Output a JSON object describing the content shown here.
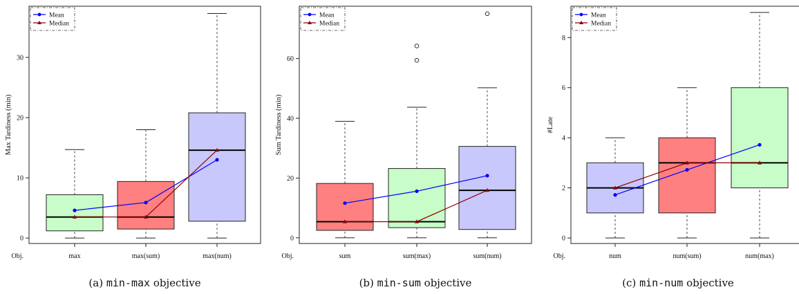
{
  "chart_data": [
    {
      "type": "box",
      "title": "",
      "xlabel": "Obj.",
      "ylabel": "Max Tardiness (min)",
      "ylim": [
        -0.9,
        38.5
      ],
      "yticks": [
        0,
        10,
        20,
        30
      ],
      "grid": false,
      "legend": {
        "position": "top-left",
        "entries": [
          "Mean",
          "Median"
        ]
      },
      "categories": [
        "max",
        "max(sum)",
        "max(num)"
      ],
      "box_colors": [
        "#c8fcc8",
        "#ff8080",
        "#c8c8fc"
      ],
      "boxes": [
        {
          "min": 0,
          "q1": 1.2,
          "median": 3.5,
          "q3": 7.2,
          "max": 14.7,
          "outliers": []
        },
        {
          "min": 0,
          "q1": 1.5,
          "median": 3.5,
          "q3": 9.4,
          "max": 18.0,
          "outliers": []
        },
        {
          "min": 0,
          "q1": 2.8,
          "median": 14.6,
          "q3": 20.8,
          "max": 37.3,
          "outliers": []
        }
      ],
      "series": [
        {
          "name": "Mean",
          "values": [
            4.6,
            5.9,
            13.0
          ]
        },
        {
          "name": "Median",
          "values": [
            3.5,
            3.5,
            14.6
          ]
        }
      ],
      "caption": {
        "label": "(a)",
        "code": "min-max",
        "text": "objective"
      }
    },
    {
      "type": "box",
      "title": "",
      "xlabel": "Obj.",
      "ylabel": "Sum Tardiness (min)",
      "ylim": [
        -1.9,
        77.5
      ],
      "yticks": [
        0,
        20,
        40,
        60
      ],
      "grid": false,
      "legend": {
        "position": "top-left",
        "entries": [
          "Mean",
          "Median"
        ]
      },
      "categories": [
        "sum",
        "sum(max)",
        "sum(num)"
      ],
      "box_colors": [
        "#ff8080",
        "#c8fcc8",
        "#c8c8fc"
      ],
      "boxes": [
        {
          "min": 0,
          "q1": 2.5,
          "median": 5.4,
          "q3": 18.2,
          "max": 39.0,
          "outliers": []
        },
        {
          "min": 0,
          "q1": 3.4,
          "median": 5.4,
          "q3": 23.2,
          "max": 43.7,
          "outliers": [
            59.4,
            64.2
          ]
        },
        {
          "min": 0,
          "q1": 2.8,
          "median": 15.9,
          "q3": 30.6,
          "max": 50.2,
          "outliers": [
            75.0
          ]
        }
      ],
      "series": [
        {
          "name": "Mean",
          "values": [
            11.6,
            15.6,
            20.8
          ]
        },
        {
          "name": "Median",
          "values": [
            5.4,
            5.4,
            15.9
          ]
        }
      ],
      "caption": {
        "label": "(b)",
        "code": "min-sum",
        "text": "objective"
      }
    },
    {
      "type": "box",
      "title": "",
      "xlabel": "Obj.",
      "ylabel": "#Late",
      "ylim": [
        -0.22,
        9.25
      ],
      "yticks": [
        0,
        2,
        4,
        6,
        8
      ],
      "grid": false,
      "legend": {
        "position": "top-left",
        "entries": [
          "Mean",
          "Median"
        ]
      },
      "categories": [
        "num",
        "num(sum)",
        "num(max)"
      ],
      "box_colors": [
        "#c8c8fc",
        "#ff8080",
        "#c8fcc8"
      ],
      "boxes": [
        {
          "min": 0,
          "q1": 1,
          "median": 2,
          "q3": 3,
          "max": 4,
          "outliers": []
        },
        {
          "min": 0,
          "q1": 1,
          "median": 3,
          "q3": 4,
          "max": 6,
          "outliers": []
        },
        {
          "min": 0,
          "q1": 2,
          "median": 3,
          "q3": 6,
          "max": 9,
          "outliers": []
        }
      ],
      "series": [
        {
          "name": "Mean",
          "values": [
            1.72,
            2.72,
            3.72
          ]
        },
        {
          "name": "Median",
          "values": [
            2,
            3,
            3
          ]
        }
      ],
      "caption": {
        "label": "(c)",
        "code": "min-num",
        "text": "objective"
      }
    }
  ],
  "colors": {
    "mean_line": "#0000ff",
    "median_line": "#8b0000",
    "axis": "#222222",
    "whisker": "#444444"
  }
}
